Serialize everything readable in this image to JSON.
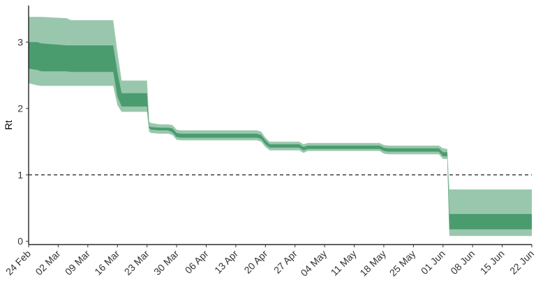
{
  "chart_data": {
    "type": "area",
    "title": "",
    "xlabel": "",
    "ylabel": "Rt",
    "x_start": "24 Feb",
    "x_end": "22 Jun",
    "xlim_days": [
      0,
      119
    ],
    "ylim": [
      -0.05,
      3.55
    ],
    "grid": false,
    "legend": "none",
    "colors": {
      "outer_band": "#99c7ad",
      "inner_band": "#4a9c6e",
      "reference_line": "#000000",
      "axis": "#000000"
    },
    "x_ticks": [
      {
        "label": "24 Feb",
        "day": 0
      },
      {
        "label": "02 Mar",
        "day": 7
      },
      {
        "label": "09 Mar",
        "day": 14
      },
      {
        "label": "16 Mar",
        "day": 21
      },
      {
        "label": "23 Mar",
        "day": 28
      },
      {
        "label": "30 Mar",
        "day": 35
      },
      {
        "label": "06 Apr",
        "day": 42
      },
      {
        "label": "13 Apr",
        "day": 49
      },
      {
        "label": "20 Apr",
        "day": 56
      },
      {
        "label": "27 Apr",
        "day": 63
      },
      {
        "label": "04 May",
        "day": 70
      },
      {
        "label": "11 May",
        "day": 77
      },
      {
        "label": "18 May",
        "day": 84
      },
      {
        "label": "25 May",
        "day": 91
      },
      {
        "label": "01 Jun",
        "day": 98
      },
      {
        "label": "08 Jun",
        "day": 105
      },
      {
        "label": "15 Jun",
        "day": 112
      },
      {
        "label": "22 Jun",
        "day": 119
      }
    ],
    "y_ticks": [
      {
        "label": "0",
        "value": 0
      },
      {
        "label": "1",
        "value": 1
      },
      {
        "label": "2",
        "value": 2
      },
      {
        "label": "3",
        "value": 3
      }
    ],
    "reference_line": {
      "y": 1,
      "style": "dashed"
    },
    "series": [
      {
        "x": [
          0,
          2,
          3,
          9,
          10,
          20,
          21,
          22,
          28,
          28.5,
          29,
          31,
          33,
          34,
          35,
          36,
          54,
          55,
          56,
          57,
          64,
          65,
          66,
          83,
          84,
          85,
          97,
          98,
          99,
          99.5,
          119
        ],
        "outer_low": [
          2.38,
          2.35,
          2.34,
          2.34,
          2.34,
          2.34,
          2.05,
          1.95,
          1.95,
          1.65,
          1.63,
          1.62,
          1.62,
          1.6,
          1.53,
          1.52,
          1.52,
          1.5,
          1.42,
          1.37,
          1.37,
          1.33,
          1.36,
          1.36,
          1.32,
          1.31,
          1.31,
          1.24,
          1.24,
          0.08,
          0.08
        ],
        "outer_high": [
          3.38,
          3.38,
          3.38,
          3.36,
          3.33,
          3.33,
          2.85,
          2.42,
          2.42,
          1.8,
          1.78,
          1.76,
          1.76,
          1.75,
          1.68,
          1.67,
          1.67,
          1.65,
          1.56,
          1.5,
          1.5,
          1.46,
          1.48,
          1.48,
          1.45,
          1.44,
          1.44,
          1.4,
          1.39,
          0.78,
          0.78
        ],
        "inner_low": [
          2.6,
          2.58,
          2.56,
          2.56,
          2.55,
          2.55,
          2.18,
          2.03,
          2.03,
          1.7,
          1.68,
          1.67,
          1.67,
          1.64,
          1.57,
          1.56,
          1.56,
          1.54,
          1.46,
          1.41,
          1.41,
          1.37,
          1.39,
          1.39,
          1.36,
          1.35,
          1.35,
          1.28,
          1.28,
          0.18,
          0.18
        ],
        "inner_high": [
          3.0,
          3.0,
          2.98,
          2.95,
          2.95,
          2.95,
          2.55,
          2.23,
          2.23,
          1.73,
          1.72,
          1.71,
          1.71,
          1.7,
          1.63,
          1.62,
          1.62,
          1.6,
          1.52,
          1.46,
          1.46,
          1.42,
          1.44,
          1.44,
          1.41,
          1.4,
          1.4,
          1.34,
          1.34,
          0.41,
          0.41
        ]
      }
    ]
  }
}
